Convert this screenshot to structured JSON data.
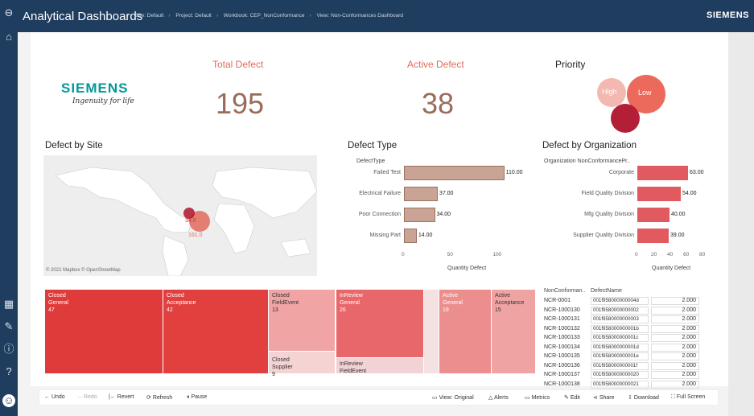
{
  "header": {
    "title": "Analytical Dashboards",
    "crumbs": [
      "Site: Default",
      "Project: Default",
      "Workbook: CEP_NonConformance",
      "View: Non-Conformances Dashboard"
    ],
    "brand": "SIEMENS"
  },
  "logo": {
    "name": "SIEMENS",
    "tagline": "Ingenuity for life"
  },
  "kpis": {
    "total_title": "Total Defect",
    "total_value": "195",
    "active_title": "Active Defect",
    "active_value": "38"
  },
  "priority": {
    "title": "Priority",
    "high": "High",
    "low": "Low"
  },
  "site": {
    "title": "Defect by Site",
    "val_a": "34.0",
    "val_b": "161.0",
    "credit": "© 2021 Mapbox © OpenStreetMap"
  },
  "chart_data": [
    {
      "type": "bar",
      "title": "Defect Type",
      "field_label": "DefectType",
      "axis_label": "Quantity Defect",
      "categories": [
        "Failed Test",
        "Electrical Failure",
        "Poor Connection",
        "Missing Part"
      ],
      "values": [
        110.0,
        37.0,
        34.0,
        14.0
      ],
      "value_labels": [
        "110.00",
        "37.00",
        "34.00",
        "14.00"
      ],
      "ticks": [
        "0",
        "50",
        "100"
      ],
      "xlim": [
        0,
        120
      ]
    },
    {
      "type": "bar",
      "title": "Defect by Organization",
      "field_label": "Organization NonConformancePr..",
      "axis_label": "Quantity Defect",
      "categories": [
        "Corporate",
        "Field Quality Division",
        "Mfg Quality Division",
        "Supplier Quality Division"
      ],
      "values": [
        63.0,
        54.0,
        40.0,
        39.0
      ],
      "value_labels": [
        "63.00",
        "54.00",
        "40.00",
        "39.00"
      ],
      "ticks": [
        "0",
        "20",
        "40",
        "60",
        "80"
      ],
      "xlim": [
        0,
        80
      ]
    }
  ],
  "treemap": [
    {
      "label": "Closed\nGeneral\n47",
      "color": "#e03b3b",
      "text": "#fff"
    },
    {
      "label": "Closed\nAcceptance\n42",
      "color": "#e23f3f",
      "text": "#fff"
    },
    {
      "label": "Closed\nFieldEvent\n13",
      "color": "#f1a4a4",
      "text": "#333"
    },
    {
      "label": "Closed\nSupplier\n9",
      "color": "#f5d3d3",
      "text": "#333"
    },
    {
      "label": "InReview\nGeneral\n26",
      "color": "#e8676b",
      "text": "#fff"
    },
    {
      "label": "InReview\nFieldEvent",
      "color": "#f2d2d4",
      "text": "#333"
    },
    {
      "label": "Active\nGeneral\n19",
      "color": "#ed8e8e",
      "text": "#fff"
    },
    {
      "label": "Active\nAcceptance\n15",
      "color": "#f0a3a3",
      "text": "#333"
    }
  ],
  "table": {
    "headers": [
      "NonConforman..",
      "DefectName"
    ],
    "rows": [
      [
        "NCR-0001",
        "001f958000000004d",
        "2.000"
      ],
      [
        "NCR-1000130",
        "001f9580000000002",
        "2.000"
      ],
      [
        "NCR-1000131",
        "001f9580000000003",
        "2.000"
      ],
      [
        "NCR-1000132",
        "001f958000000001b",
        "2.000"
      ],
      [
        "NCR-1000133",
        "001f958000000001c",
        "2.000"
      ],
      [
        "NCR-1000134",
        "001f958000000001d",
        "2.000"
      ],
      [
        "NCR-1000135",
        "001f958000000001e",
        "2.000"
      ],
      [
        "NCR-1000136",
        "001f958000000001f",
        "2.000"
      ],
      [
        "NCR-1000137",
        "001f9580000000020",
        "2.000"
      ],
      [
        "NCR-1000138",
        "001f9580000000021",
        "2.000"
      ]
    ]
  },
  "toolbar": {
    "undo": "Undo",
    "redo": "Redo",
    "revert": "Revert",
    "refresh": "Refresh",
    "pause": "Pause",
    "view": "View: Original",
    "alerts": "Alerts",
    "metrics": "Metrics",
    "edit": "Edit",
    "share": "Share",
    "download": "Download",
    "fullscreen": "Full Screen"
  }
}
